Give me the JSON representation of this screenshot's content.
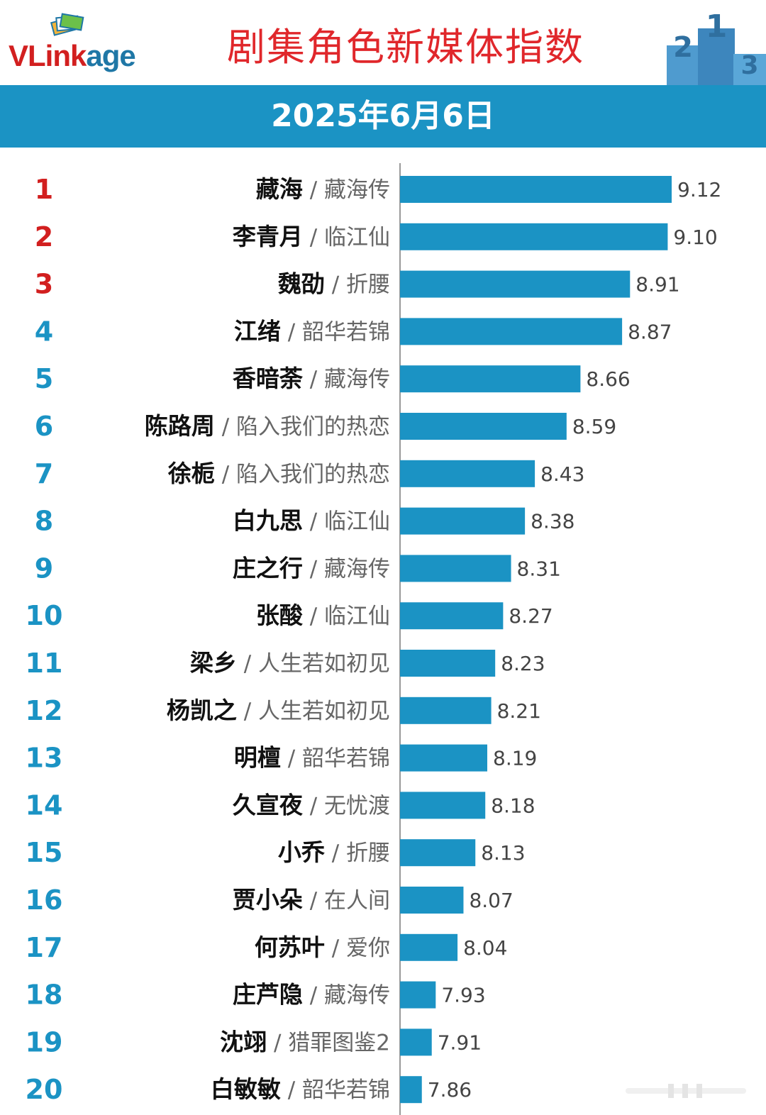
{
  "header": {
    "logo_prefix": "VLink",
    "logo_suffix": "age",
    "title": "剧集角色新媒体指数",
    "date": "2025年6月6日",
    "podium_numbers": [
      "2",
      "1",
      "3"
    ]
  },
  "colors": {
    "bar": "#1b93c4",
    "header_band": "#1b93c4",
    "rank_top3": "#d21f1f",
    "rank_other": "#1b93c4",
    "title": "#e0272b"
  },
  "chart_data": {
    "type": "bar",
    "orientation": "horizontal",
    "categories": [
      {
        "rank": "1",
        "name": "藏海",
        "show": "藏海传"
      },
      {
        "rank": "2",
        "name": "李青月",
        "show": "临江仙"
      },
      {
        "rank": "3",
        "name": "魏劭",
        "show": "折腰"
      },
      {
        "rank": "4",
        "name": "江绪",
        "show": "韶华若锦"
      },
      {
        "rank": "5",
        "name": "香暗荼",
        "show": "藏海传"
      },
      {
        "rank": "6",
        "name": "陈路周",
        "show": "陷入我们的热恋"
      },
      {
        "rank": "7",
        "name": "徐栀",
        "show": "陷入我们的热恋"
      },
      {
        "rank": "8",
        "name": "白九思",
        "show": "临江仙"
      },
      {
        "rank": "9",
        "name": "庄之行",
        "show": "藏海传"
      },
      {
        "rank": "10",
        "name": "张酸",
        "show": "临江仙"
      },
      {
        "rank": "11",
        "name": "梁乡",
        "show": "人生若如初见"
      },
      {
        "rank": "12",
        "name": "杨凯之",
        "show": "人生若如初见"
      },
      {
        "rank": "13",
        "name": "明檀",
        "show": "韶华若锦"
      },
      {
        "rank": "14",
        "name": "久宣夜",
        "show": "无忧渡"
      },
      {
        "rank": "15",
        "name": "小乔",
        "show": "折腰"
      },
      {
        "rank": "16",
        "name": "贾小朵",
        "show": "在人间"
      },
      {
        "rank": "17",
        "name": "何苏叶",
        "show": "爱你"
      },
      {
        "rank": "18",
        "name": "庄芦隐",
        "show": "藏海传"
      },
      {
        "rank": "19",
        "name": "沈翊",
        "show": "猎罪图鉴2"
      },
      {
        "rank": "20",
        "name": "白敏敏",
        "show": "韶华若锦"
      }
    ],
    "values": [
      9.12,
      9.1,
      8.91,
      8.87,
      8.66,
      8.59,
      8.43,
      8.38,
      8.31,
      8.27,
      8.23,
      8.21,
      8.19,
      8.18,
      8.13,
      8.07,
      8.04,
      7.93,
      7.91,
      7.86
    ],
    "value_labels": [
      "9.12",
      "9.10",
      "8.91",
      "8.87",
      "8.66",
      "8.59",
      "8.43",
      "8.38",
      "8.31",
      "8.27",
      "8.23",
      "8.21",
      "8.19",
      "8.18",
      "8.13",
      "8.07",
      "8.04",
      "7.93",
      "7.91",
      "7.86"
    ],
    "separator": "/",
    "xlim": [
      7.8,
      9.12
    ],
    "grid": false,
    "legend": "none"
  }
}
